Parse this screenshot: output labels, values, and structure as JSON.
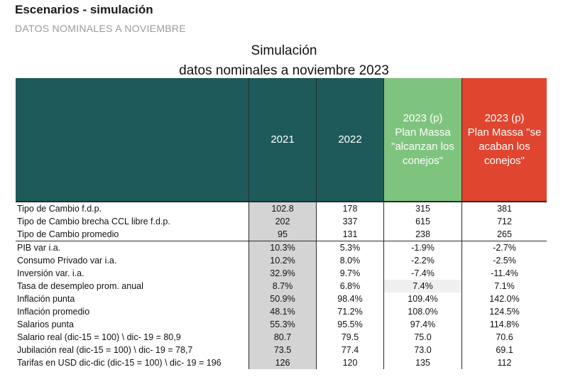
{
  "header": {
    "title": "Escenarios - simulación",
    "subtitle": "DATOS NOMINALES A NOVIEMBRE"
  },
  "table_title": {
    "line1": "Simulación",
    "line2": "datos nominales a noviembre 2023"
  },
  "columns": {
    "c1": "2021",
    "c2": "2022",
    "c3_lines": [
      "2023 (p)",
      "Plan Massa",
      "\"alcanzan los",
      "conejos\""
    ],
    "c4_lines": [
      "2023 (p)",
      "Plan Massa \"se",
      "acaban los",
      "conejos\""
    ]
  },
  "colors": {
    "header_teal": "#1e5a5a",
    "header_green": "#7fc47e",
    "header_red": "#e0452f",
    "col_2021_bg": "#d4d4d4"
  },
  "rows": [
    {
      "label": "Tipo de Cambio f.d.p.",
      "v2021": "102.8",
      "v2022": "178",
      "v23a": "315",
      "v23b": "381"
    },
    {
      "label": "Tipo de Cambio brecha CCL libre f.d.p.",
      "v2021": "202",
      "v2022": "337",
      "v23a": "615",
      "v23b": "712"
    },
    {
      "label": "Tipo de Cambio promedio",
      "v2021": "95",
      "v2022": "131",
      "v23a": "238",
      "v23b": "265"
    },
    {
      "label": "PIB var i.a.",
      "v2021": "10.3%",
      "v2022": "5.3%",
      "v23a": "-1.9%",
      "v23b": "-2.7%"
    },
    {
      "label": "Consumo Privado var i.a.",
      "v2021": "10.2%",
      "v2022": "8.0%",
      "v23a": "-2.2%",
      "v23b": "-2.5%"
    },
    {
      "label": "Inversión var. i.a.",
      "v2021": "32.9%",
      "v2022": "9.7%",
      "v23a": "-7.4%",
      "v23b": "-11.4%"
    },
    {
      "label": "Tasa de desempleo prom. anual",
      "v2021": "8.7%",
      "v2022": "6.8%",
      "v23a": "7.4%",
      "v23b": "7.1%"
    },
    {
      "label": "Inflación punta",
      "v2021": "50.9%",
      "v2022": "98.4%",
      "v23a": "109.4%",
      "v23b": "142.0%"
    },
    {
      "label": "Inflación promedio",
      "v2021": "48.1%",
      "v2022": "71.2%",
      "v23a": "108.0%",
      "v23b": "124.5%"
    },
    {
      "label": "Salarios punta",
      "v2021": "55.3%",
      "v2022": "95.5%",
      "v23a": "97.4%",
      "v23b": "114.8%"
    },
    {
      "label": "Salario real (dic-15 = 100) \\ dic- 19 = 80,9",
      "v2021": "80.7",
      "v2022": "79.5",
      "v23a": "75.0",
      "v23b": "70.6"
    },
    {
      "label": "Jubilación real (dic-15 = 100)  \\ dic- 19 = 78,7",
      "v2021": "73.5",
      "v2022": "77.4",
      "v23a": "73.0",
      "v23b": "69.1"
    },
    {
      "label": "Tarifas en USD dic-dic (dic-15 = 100) \\ dic- 19 = 196",
      "v2021": "126",
      "v2022": "120",
      "v23a": "135",
      "v23b": "112"
    }
  ]
}
